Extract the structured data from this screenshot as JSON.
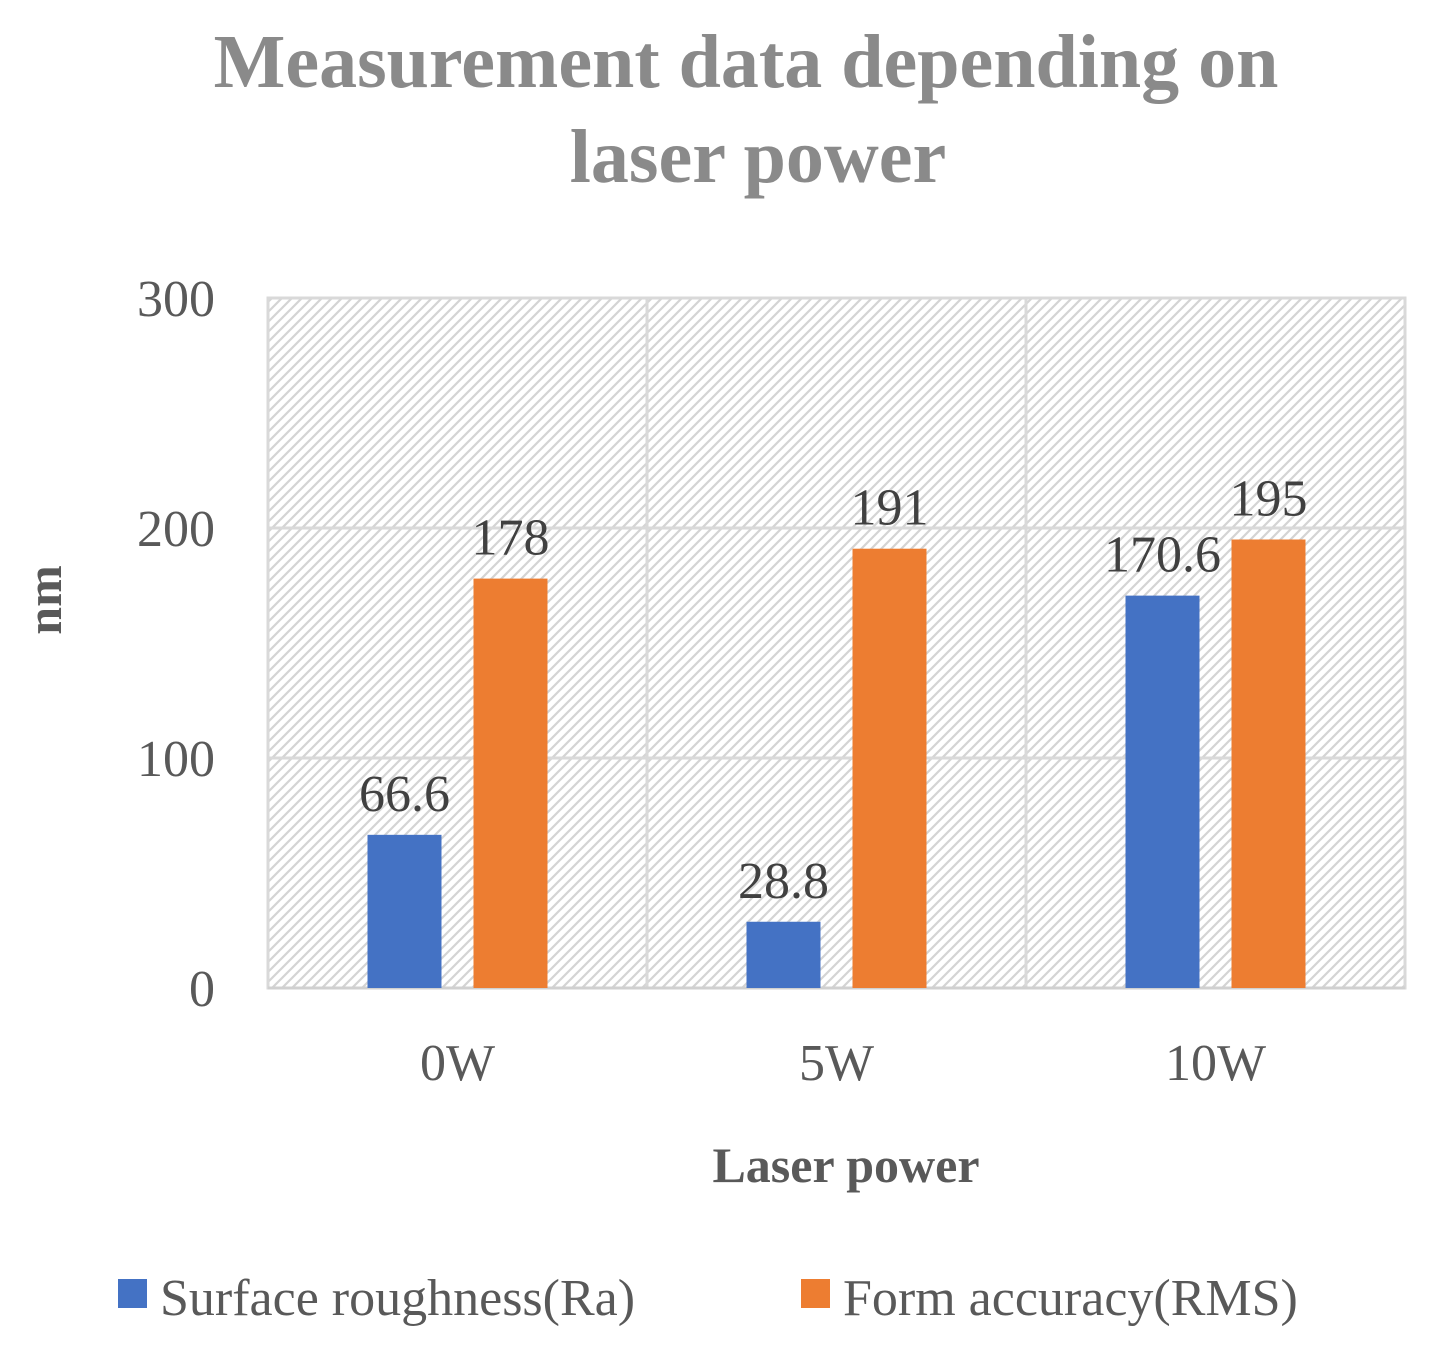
{
  "chart_data": {
    "type": "bar",
    "title_lines": [
      "Measurement data depending on",
      "laser power"
    ],
    "xlabel": "Laser power",
    "ylabel": "nm",
    "categories": [
      "0W",
      "5W",
      "10W"
    ],
    "ylim": [
      0,
      300
    ],
    "yticks": [
      0,
      100,
      200,
      300
    ],
    "grid": true,
    "legend": "bottom",
    "series": [
      {
        "name": "Surface roughness(Ra)",
        "values": [
          66.6,
          28.8,
          170.6
        ],
        "labels": [
          "66.6",
          "28.8",
          "170.6"
        ],
        "color": "#4472c4"
      },
      {
        "name": "Form accuracy(RMS)",
        "values": [
          178,
          191,
          195
        ],
        "labels": [
          "178",
          "191",
          "195"
        ],
        "color": "#ed7d31"
      }
    ]
  }
}
